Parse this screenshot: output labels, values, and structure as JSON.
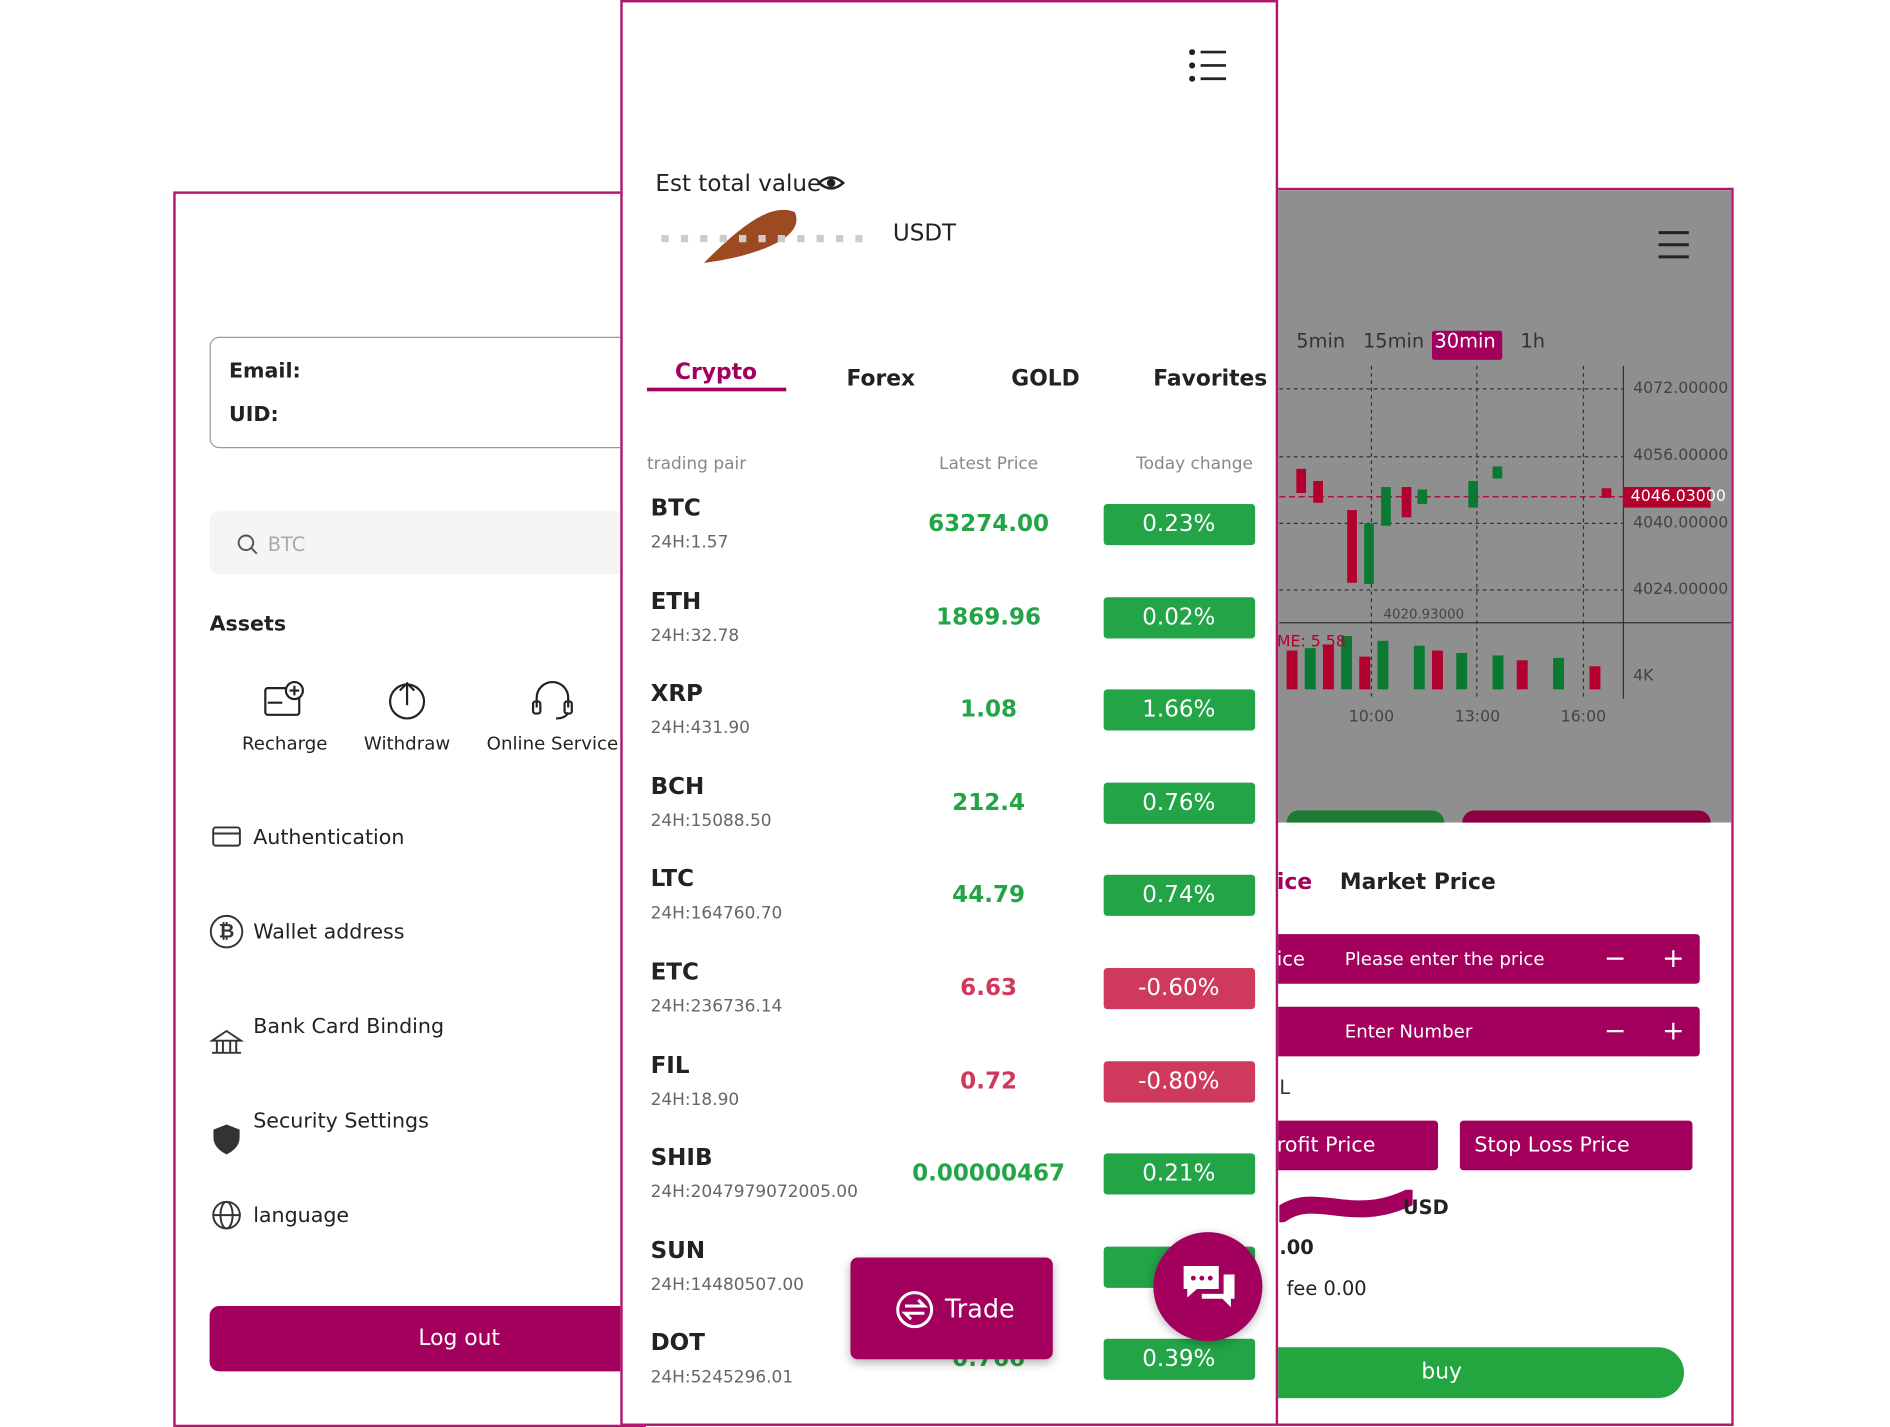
{
  "account_screen": {
    "email_label": "Email:",
    "uid_label": "UID:",
    "search_placeholder": "BTC",
    "assets_title": "Assets",
    "asset_actions": [
      "Recharge",
      "Withdraw",
      "Online Service"
    ],
    "menu": [
      "Authentication",
      "Wallet address",
      "Bank Card Binding",
      "Security Settings",
      "language"
    ],
    "logout": "Log out"
  },
  "market_screen": {
    "est_label": "Est total value",
    "currency": "USDT",
    "tabs": [
      "Crypto",
      "Forex",
      "GOLD",
      "Favorites"
    ],
    "headers": [
      "trading pair",
      "Latest Price",
      "Today change"
    ],
    "rows": [
      {
        "pair": "BTC",
        "volume": "24H:1.57",
        "price": "63274.00",
        "change": "0.23%"
      },
      {
        "pair": "ETH",
        "volume": "24H:32.78",
        "price": "1869.96",
        "change": "0.02%"
      },
      {
        "pair": "XRP",
        "volume": "24H:431.90",
        "price": "1.08",
        "change": "1.66%"
      },
      {
        "pair": "BCH",
        "volume": "24H:15088.50",
        "price": "212.4",
        "change": "0.76%"
      },
      {
        "pair": "LTC",
        "volume": "24H:164760.70",
        "price": "44.79",
        "change": "0.74%"
      },
      {
        "pair": "ETC",
        "volume": "24H:236736.14",
        "price": "6.63",
        "change": "-0.60%"
      },
      {
        "pair": "FIL",
        "volume": "24H:18.90",
        "price": "0.72",
        "change": "-0.80%"
      },
      {
        "pair": "SHIB",
        "volume": "24H:2047979072005.00",
        "price": "0.00000467",
        "change": "0.21%"
      },
      {
        "pair": "SUN",
        "volume": "24H:14480507.00"
      },
      {
        "pair": "DOT",
        "volume": "24H:5245296.01",
        "price": "0.766",
        "change": "0.39%"
      }
    ],
    "trade_button": "Trade"
  },
  "trade_screen": {
    "timeframes": [
      "5min",
      "15min",
      "30min",
      "1h"
    ],
    "price_axis": [
      "4072.00000",
      "4056.00000",
      "4040.00000",
      "4024.00000"
    ],
    "current_price": "4046.03000",
    "low_label": "4020.93000",
    "volume_label": "ME: 5.58",
    "volume_axis": "4K",
    "time_axis": [
      "10:00",
      "13:00",
      "16:00"
    ],
    "order_tabs": [
      "ice",
      "Market Price"
    ],
    "price_field_label": "ice",
    "price_placeholder": "Please enter the price",
    "number_placeholder": "Enter Number",
    "leverage_label": "L",
    "take_profit": "rofit Price",
    "stop_loss": "Stop Loss Price",
    "balance_unit": "USD",
    "margin_value": ".00",
    "fee_label": "fee 0.00",
    "buy": "buy"
  }
}
